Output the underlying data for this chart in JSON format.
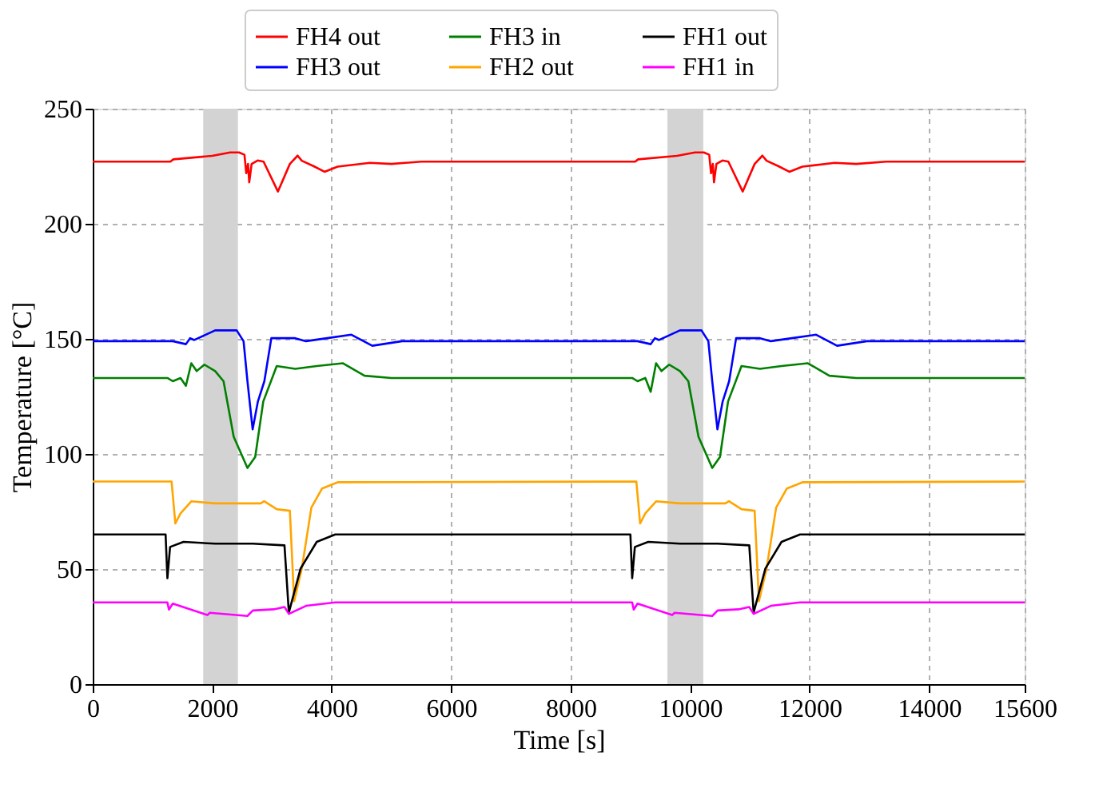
{
  "chart_data": {
    "type": "line",
    "xlabel": "Time [s]",
    "ylabel": "Temperature [°C]",
    "xlim": [
      0,
      15600
    ],
    "ylim": [
      0,
      250
    ],
    "xticks": [
      0,
      2000,
      4000,
      6000,
      8000,
      10000,
      12000,
      14000,
      15600
    ],
    "yticks": [
      0,
      50,
      100,
      150,
      200,
      250
    ],
    "grid": true,
    "legend": "top",
    "line_style": "solid",
    "marker": "none",
    "bands": [
      {
        "axis": "x",
        "from": 1850,
        "to": 2430,
        "color": "#d3d3d3"
      },
      {
        "axis": "x",
        "from": 9620,
        "to": 10220,
        "color": "#d3d3d3"
      }
    ],
    "series": [
      {
        "name": "FH4 out",
        "color": "#ff0000",
        "x": [
          0,
          1300,
          1350,
          2000,
          2300,
          2450,
          2540,
          2570,
          2600,
          2620,
          2660,
          2760,
          2860,
          3100,
          3300,
          3430,
          3500,
          3700,
          3880,
          4100,
          4640,
          5000,
          5500,
          9080,
          9130,
          9780,
          10080,
          10230,
          10320,
          10350,
          10380,
          10400,
          10440,
          10540,
          10640,
          10880,
          11080,
          11210,
          11280,
          11480,
          11660,
          11880,
          12420,
          12780,
          13280,
          15600
        ],
        "values": [
          227,
          227,
          228,
          229.5,
          231,
          231,
          230,
          222,
          226,
          218,
          226,
          227.5,
          227,
          214,
          226,
          229.6,
          227.4,
          225,
          222.6,
          224.8,
          226.5,
          226,
          227,
          227,
          228,
          229.5,
          231,
          231,
          230,
          222,
          226,
          218,
          226,
          227.5,
          227,
          214,
          226,
          229.6,
          227.4,
          225,
          222.6,
          224.8,
          226.5,
          226,
          227,
          227
        ]
      },
      {
        "name": "FH3 out",
        "color": "#0000ff",
        "x": [
          0,
          1340,
          1560,
          1630,
          1700,
          2050,
          2410,
          2525,
          2590,
          2677,
          2765,
          2873,
          2990,
          3390,
          3570,
          3925,
          4330,
          4680,
          5180,
          9120,
          9340,
          9410,
          9480,
          9830,
          10190,
          10305,
          10370,
          10457,
          10545,
          10653,
          10770,
          11170,
          11350,
          11705,
          12110,
          12460,
          12960,
          15600
        ],
        "values": [
          149,
          149,
          147.7,
          150.3,
          149.5,
          153.7,
          153.7,
          149,
          131.6,
          110.7,
          122.8,
          131.6,
          150.3,
          150.3,
          149,
          150.3,
          151.8,
          147,
          149,
          149,
          147.7,
          150.3,
          149.5,
          153.7,
          153.7,
          149,
          131.6,
          110.7,
          122.8,
          131.6,
          150.3,
          150.3,
          149,
          150.3,
          151.8,
          147,
          149,
          149
        ]
      },
      {
        "name": "FH3 in",
        "color": "#008000",
        "x": [
          0,
          1250,
          1340,
          1470,
          1560,
          1650,
          1740,
          1870,
          2050,
          2190,
          2360,
          2590,
          2720,
          2855,
          3080,
          3390,
          3750,
          4190,
          4550,
          5000,
          9030,
          9120,
          9250,
          9340,
          9430,
          9520,
          9650,
          9830,
          9970,
          10140,
          10370,
          10500,
          10635,
          10860,
          11170,
          11530,
          11970,
          12330,
          12780,
          15600
        ],
        "values": [
          133,
          133,
          131.6,
          133,
          129.6,
          139.4,
          136,
          138.8,
          136,
          131.6,
          107.5,
          93.9,
          98.7,
          122.8,
          138.2,
          137,
          138.2,
          139.4,
          134,
          133,
          133,
          131.6,
          133,
          127,
          139.4,
          136,
          138.8,
          136,
          131.6,
          107.5,
          93.9,
          98.7,
          122.8,
          138.2,
          137,
          138.2,
          139.4,
          134,
          133,
          133
        ]
      },
      {
        "name": "FH2 out",
        "color": "#ffa500",
        "x": [
          0,
          1320,
          1383,
          1470,
          1650,
          2050,
          2810,
          2870,
          3080,
          3300,
          3372,
          3500,
          3660,
          3840,
          4100,
          9100,
          9163,
          9250,
          9430,
          9830,
          10590,
          10650,
          10860,
          11080,
          11152,
          11280,
          11440,
          11620,
          11880,
          15600
        ],
        "values": [
          88,
          88,
          69.8,
          74.2,
          79.4,
          78.5,
          78.5,
          79.5,
          76,
          75.3,
          36,
          50.2,
          76.7,
          85,
          87.7,
          88,
          69.8,
          74.2,
          79.4,
          78.5,
          78.5,
          79.5,
          76,
          75.3,
          36,
          50.2,
          76.7,
          85,
          87.7,
          88
        ]
      },
      {
        "name": "FH1 out",
        "color": "#000000",
        "x": [
          0,
          1220,
          1250,
          1295,
          1520,
          2050,
          2680,
          3210,
          3283,
          3480,
          3750,
          4060,
          9000,
          9030,
          9075,
          9300,
          9830,
          10460,
          10990,
          11063,
          11260,
          11530,
          11840,
          15600
        ],
        "values": [
          65,
          65,
          46,
          59.6,
          61.8,
          61,
          61,
          60.3,
          31.1,
          50.2,
          61.8,
          65,
          65,
          46,
          59.6,
          61.8,
          61,
          61,
          60.3,
          31.1,
          50.2,
          61.8,
          65,
          65
        ]
      },
      {
        "name": "FH1 in",
        "color": "#ff00ff",
        "x": [
          0,
          1250,
          1276,
          1340,
          1920,
          1960,
          2590,
          2680,
          3030,
          3210,
          3283,
          3570,
          4060,
          9030,
          9056,
          9120,
          9700,
          9740,
          10370,
          10460,
          10810,
          10990,
          11063,
          11350,
          11840,
          15600
        ],
        "values": [
          35.5,
          35.5,
          32.4,
          35,
          30,
          31,
          29.6,
          32,
          32.5,
          33.5,
          30.5,
          34,
          35.5,
          35.5,
          32.4,
          35,
          30,
          31,
          29.6,
          32,
          32.5,
          33.5,
          30.5,
          34,
          35.5,
          35.5
        ]
      }
    ]
  }
}
